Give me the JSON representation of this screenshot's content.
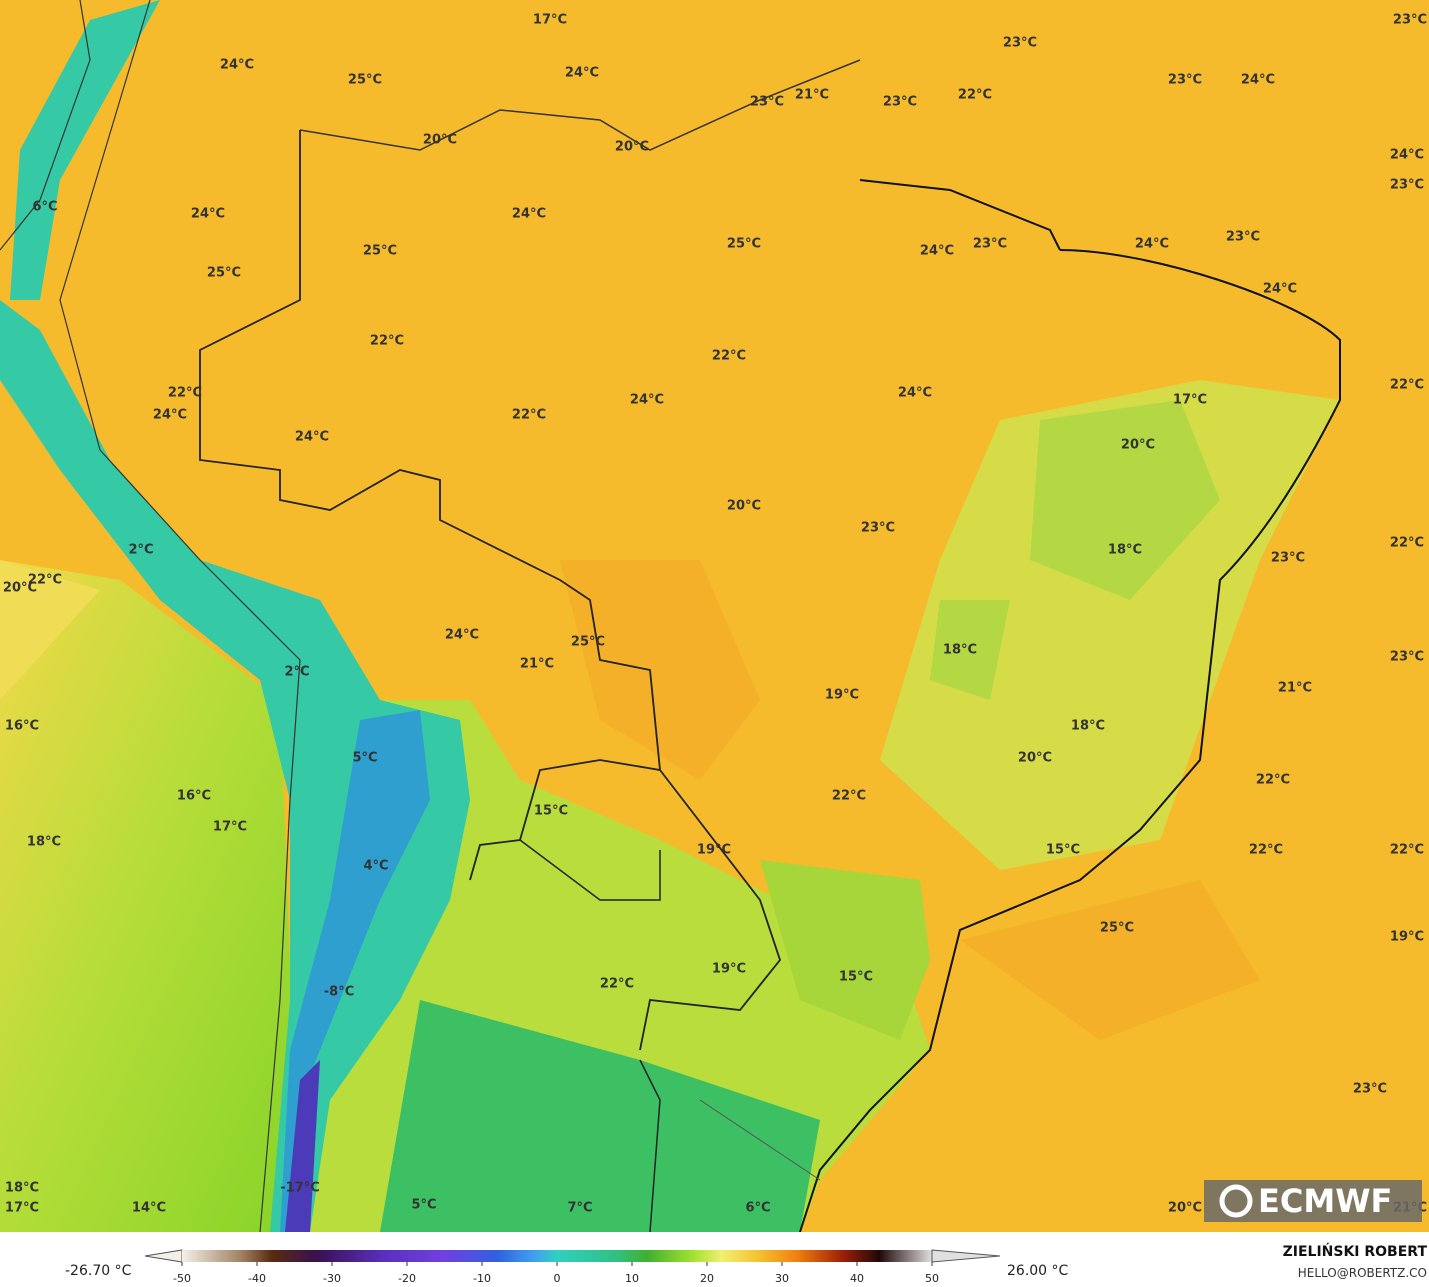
{
  "map": {
    "labels": [
      "23°C",
      "17°C",
      "23°C",
      "24°C",
      "24°C",
      "25°C",
      "23°C",
      "24°C",
      "23°C",
      "21°C",
      "23°C",
      "22°C",
      "20°C",
      "20°C",
      "24°C",
      "23°C",
      "6°C",
      "24°C",
      "24°C",
      "25°C",
      "24°C",
      "23°C",
      "24°C",
      "23°C",
      "25°C",
      "25°C",
      "24°C",
      "22°C",
      "22°C",
      "22°C",
      "24°C",
      "22°C",
      "24°C",
      "17°C",
      "24°C",
      "22°C",
      "24°C",
      "20°C",
      "20°C",
      "23°C",
      "22°C",
      "2°C",
      "18°C",
      "23°C",
      "22°C",
      "20°C",
      "24°C",
      "25°C",
      "18°C",
      "23°C",
      "2°C",
      "21°C",
      "21°C",
      "19°C",
      "16°C",
      "18°C",
      "5°C",
      "20°C",
      "22°C",
      "16°C",
      "22°C",
      "15°C",
      "17°C",
      "18°C",
      "19°C",
      "15°C",
      "22°C",
      "22°C",
      "4°C",
      "25°C",
      "19°C",
      "19°C",
      "15°C",
      "22°C",
      "-8°C",
      "23°C",
      "18°C",
      "-17°C",
      "17°C",
      "14°C",
      "5°C",
      "7°C",
      "6°C",
      "20°C",
      "21°C"
    ]
  },
  "colorbar": {
    "min_label": "-26.70 °C",
    "max_label": "26.00 °C",
    "ticks": [
      -50,
      -40,
      -30,
      -20,
      -10,
      0,
      10,
      20,
      30,
      40,
      50
    ]
  },
  "credit": {
    "name": "ZIELIŃSKI ROBERT",
    "email": "HELLO@ROBERTZ.CO"
  },
  "logo": "ECMWF"
}
